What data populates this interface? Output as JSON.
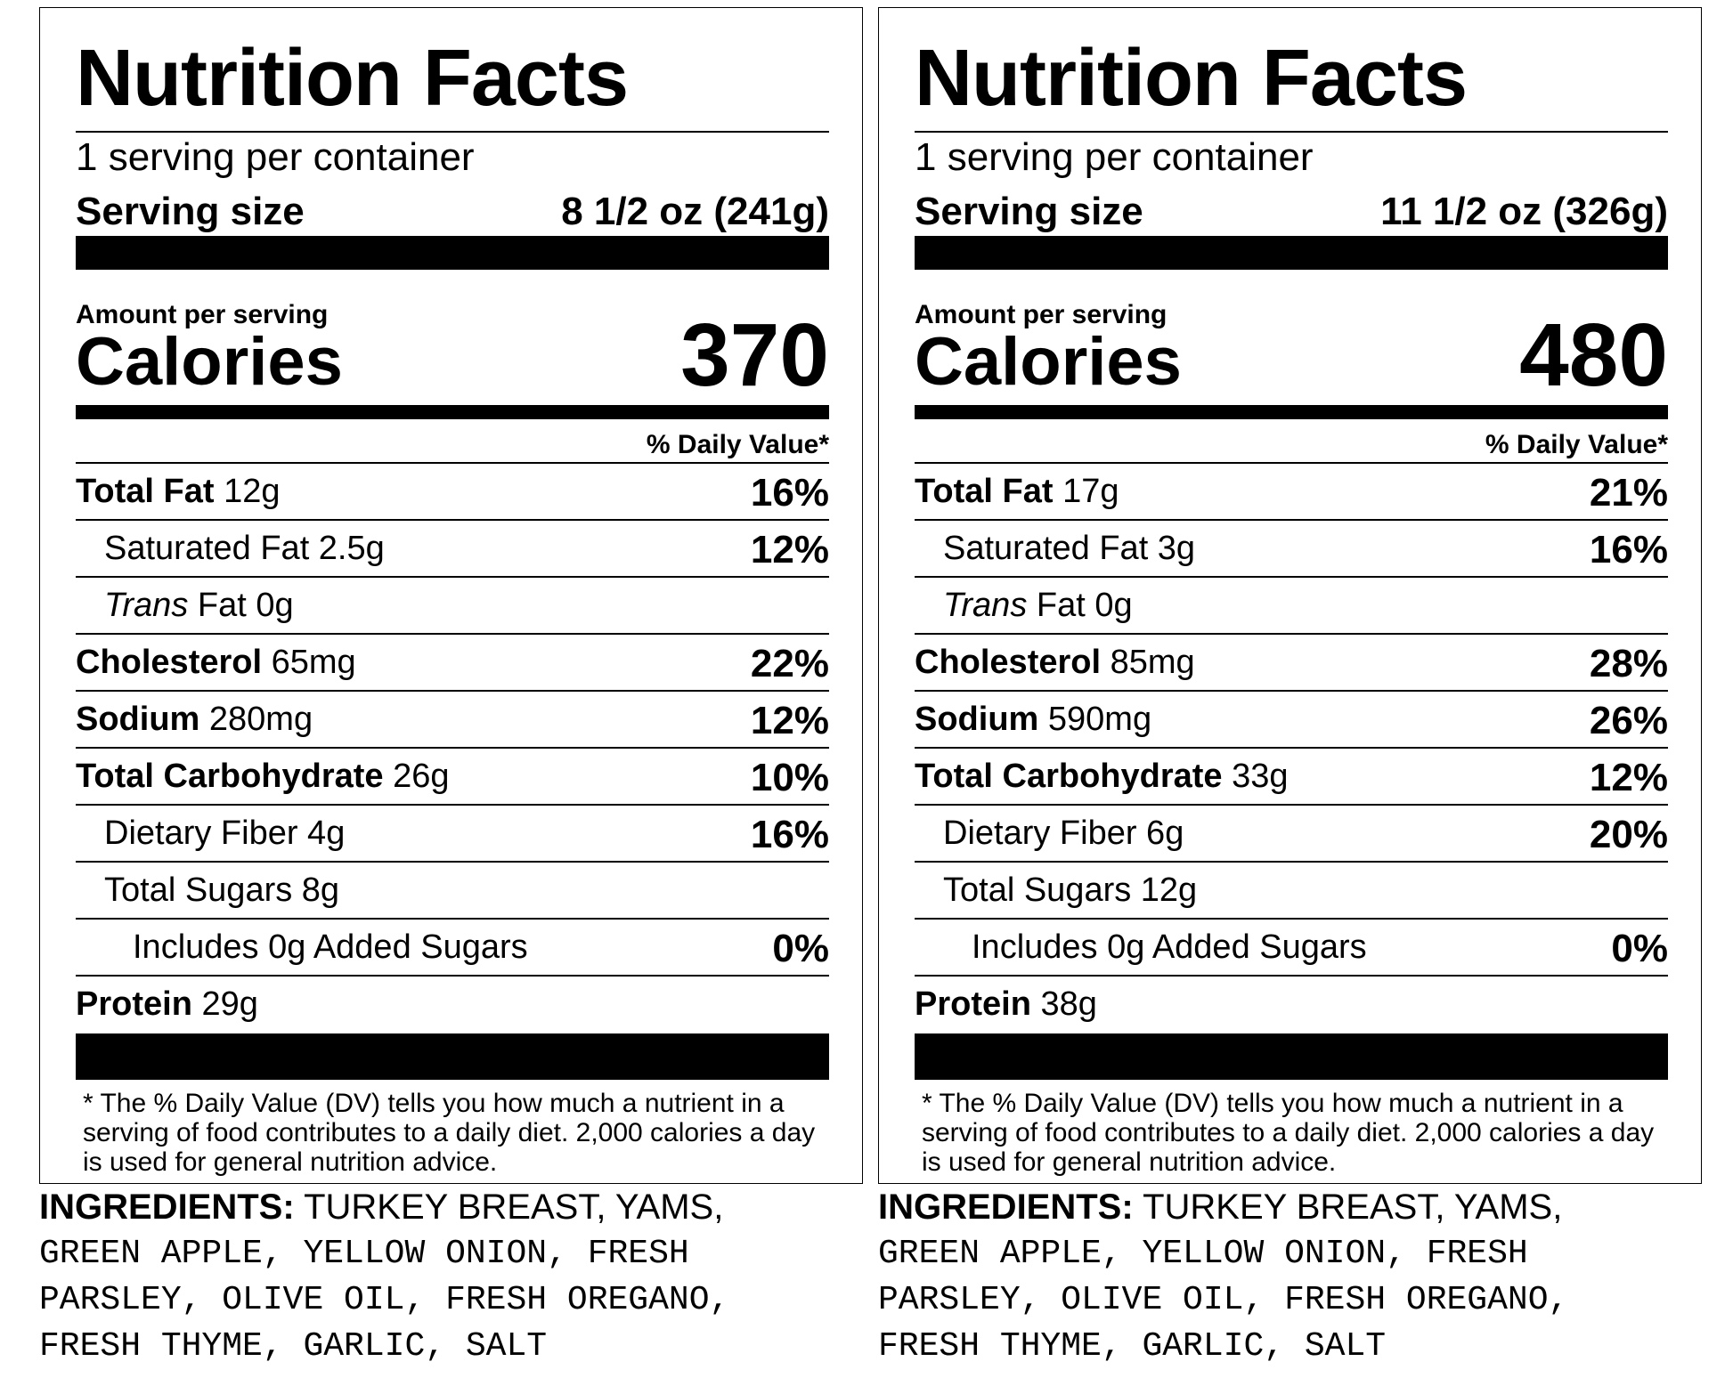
{
  "labels": [
    {
      "title": "Nutrition Facts",
      "servings_per_container": "1 serving per container",
      "serving_size_label": "Serving size",
      "serving_size_value": "8 1/2 oz (241g)",
      "amount_per_serving": "Amount per serving",
      "calories_label": "Calories",
      "calories_value": "370",
      "daily_value_header": "% Daily Value*",
      "total_fat": {
        "label": "Total Fat",
        "amount": "12g",
        "dv": "16%"
      },
      "saturated_fat": {
        "label": "Saturated Fat 2.5g",
        "dv": "12%"
      },
      "trans_fat": {
        "label_italic": "Trans",
        "label_rest": " Fat 0g"
      },
      "cholesterol": {
        "label": "Cholesterol",
        "amount": "65mg",
        "dv": "22%"
      },
      "sodium": {
        "label": "Sodium",
        "amount": "280mg",
        "dv": "12%"
      },
      "total_carbohydrate": {
        "label": "Total Carbohydrate",
        "amount": "26g",
        "dv": "10%"
      },
      "dietary_fiber": {
        "label": "Dietary Fiber 4g",
        "dv": "16%"
      },
      "total_sugars": {
        "label": "Total Sugars 8g"
      },
      "added_sugars": {
        "label": "Includes 0g Added Sugars",
        "dv": "0%"
      },
      "protein": {
        "label": "Protein",
        "amount": "29g"
      },
      "footnote": "* The % Daily Value (DV) tells you how much a nutrient in a serving of food contributes to a daily diet. 2,000 calories a day is used for general nutrition advice.",
      "ingredients_label": "INGREDIENTS:",
      "ingredients_line1": " TURKEY BREAST, YAMS,",
      "ingredients_line2": "GREEN APPLE, YELLOW ONION, FRESH",
      "ingredients_line3": "PARSLEY, OLIVE OIL, FRESH OREGANO,",
      "ingredients_line4": "FRESH THYME, GARLIC, SALT"
    },
    {
      "title": "Nutrition Facts",
      "servings_per_container": "1 serving per container",
      "serving_size_label": "Serving size",
      "serving_size_value": "11 1/2 oz (326g)",
      "amount_per_serving": "Amount per serving",
      "calories_label": "Calories",
      "calories_value": "480",
      "daily_value_header": "% Daily Value*",
      "total_fat": {
        "label": "Total Fat",
        "amount": "17g",
        "dv": "21%"
      },
      "saturated_fat": {
        "label": "Saturated Fat 3g",
        "dv": "16%"
      },
      "trans_fat": {
        "label_italic": "Trans",
        "label_rest": " Fat 0g"
      },
      "cholesterol": {
        "label": "Cholesterol",
        "amount": "85mg",
        "dv": "28%"
      },
      "sodium": {
        "label": "Sodium",
        "amount": "590mg",
        "dv": "26%"
      },
      "total_carbohydrate": {
        "label": "Total Carbohydrate",
        "amount": "33g",
        "dv": "12%"
      },
      "dietary_fiber": {
        "label": "Dietary Fiber 6g",
        "dv": "20%"
      },
      "total_sugars": {
        "label": "Total Sugars 12g"
      },
      "added_sugars": {
        "label": "Includes 0g Added Sugars",
        "dv": "0%"
      },
      "protein": {
        "label": "Protein",
        "amount": "38g"
      },
      "footnote": "* The % Daily Value (DV) tells you how much a nutrient in a serving of food contributes to a daily diet. 2,000 calories a day is used for general nutrition advice.",
      "ingredients_label": "INGREDIENTS:",
      "ingredients_line1": " TURKEY BREAST, YAMS,",
      "ingredients_line2": "GREEN APPLE, YELLOW ONION, FRESH",
      "ingredients_line3": "PARSLEY, OLIVE OIL, FRESH OREGANO,",
      "ingredients_line4": "FRESH THYME, GARLIC, SALT"
    }
  ]
}
